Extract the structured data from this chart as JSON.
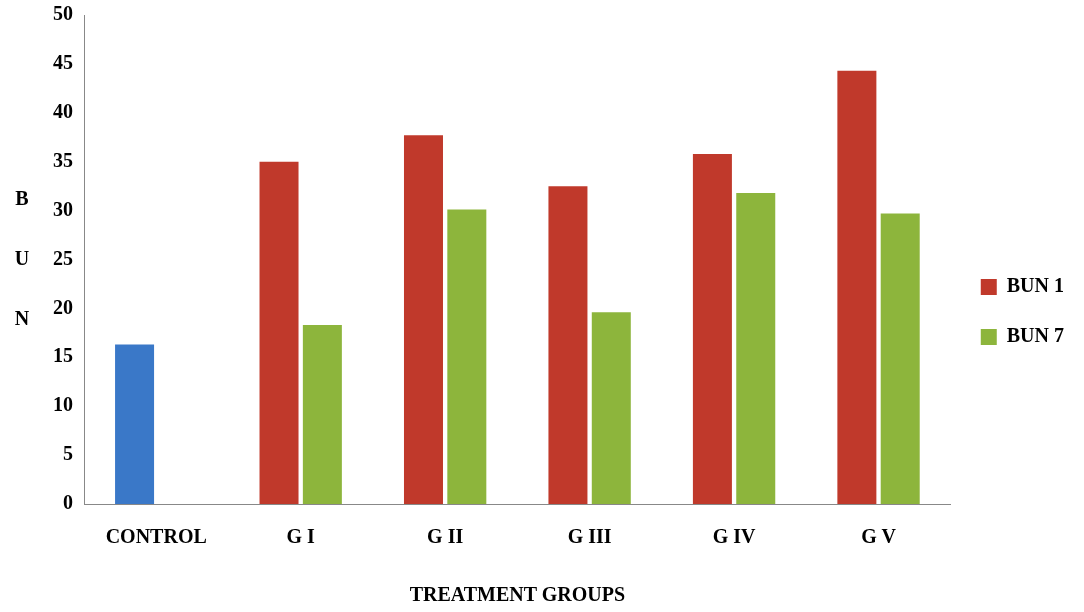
{
  "chart_data": {
    "type": "bar",
    "xlabel": "TREATMENT GROUPS",
    "ylabel": "BUN",
    "categories": [
      "CONTROL",
      "G I",
      "G II",
      "G III",
      "G IV",
      "G V"
    ],
    "series": [
      {
        "name": "BUN 1",
        "color": "#c0392b",
        "colors": [
          "#3a78c8",
          "#c0392b",
          "#c0392b",
          "#c0392b",
          "#c0392b",
          "#c0392b"
        ],
        "values": [
          16.3,
          35,
          37.7,
          32.5,
          35.8,
          44.3
        ]
      },
      {
        "name": "BUN 7",
        "color": "#8db53c",
        "values": [
          null,
          18.3,
          30.1,
          19.6,
          31.8,
          29.7
        ]
      }
    ],
    "ylim": [
      0,
      50
    ],
    "yticks": [
      0,
      5,
      10,
      15,
      20,
      25,
      30,
      35,
      40,
      45,
      50
    ],
    "grid": false,
    "legend": "right"
  }
}
